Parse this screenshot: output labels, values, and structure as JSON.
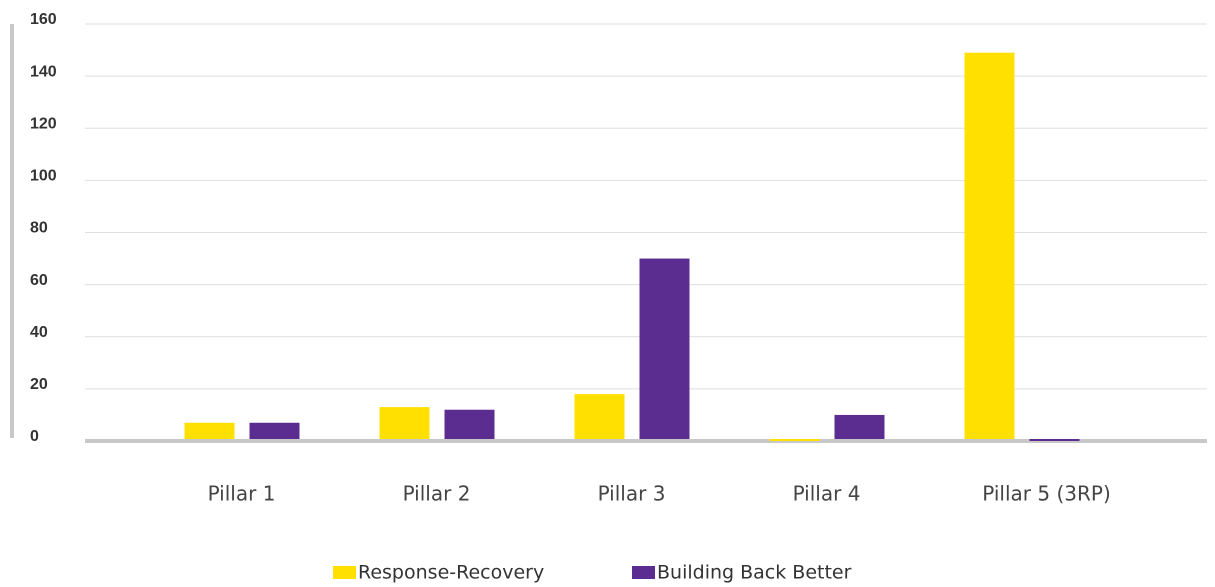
{
  "chart_data": {
    "type": "bar",
    "categories": [
      "Pillar 1",
      "Pillar 2",
      "Pillar 3",
      "Pillar 4",
      "Pillar 5 (3RP)"
    ],
    "series": [
      {
        "name": "Response-Recovery",
        "color": "#ffe000",
        "values": [
          7,
          13,
          18,
          0,
          149
        ]
      },
      {
        "name": "Building Back Better",
        "color": "#5b2d90",
        "values": [
          7,
          12,
          70,
          10,
          0
        ]
      }
    ],
    "ylim": [
      0,
      160
    ],
    "yticks": [
      0,
      20,
      40,
      60,
      80,
      100,
      120,
      140,
      160
    ],
    "grid": true,
    "legend": "bottom"
  }
}
